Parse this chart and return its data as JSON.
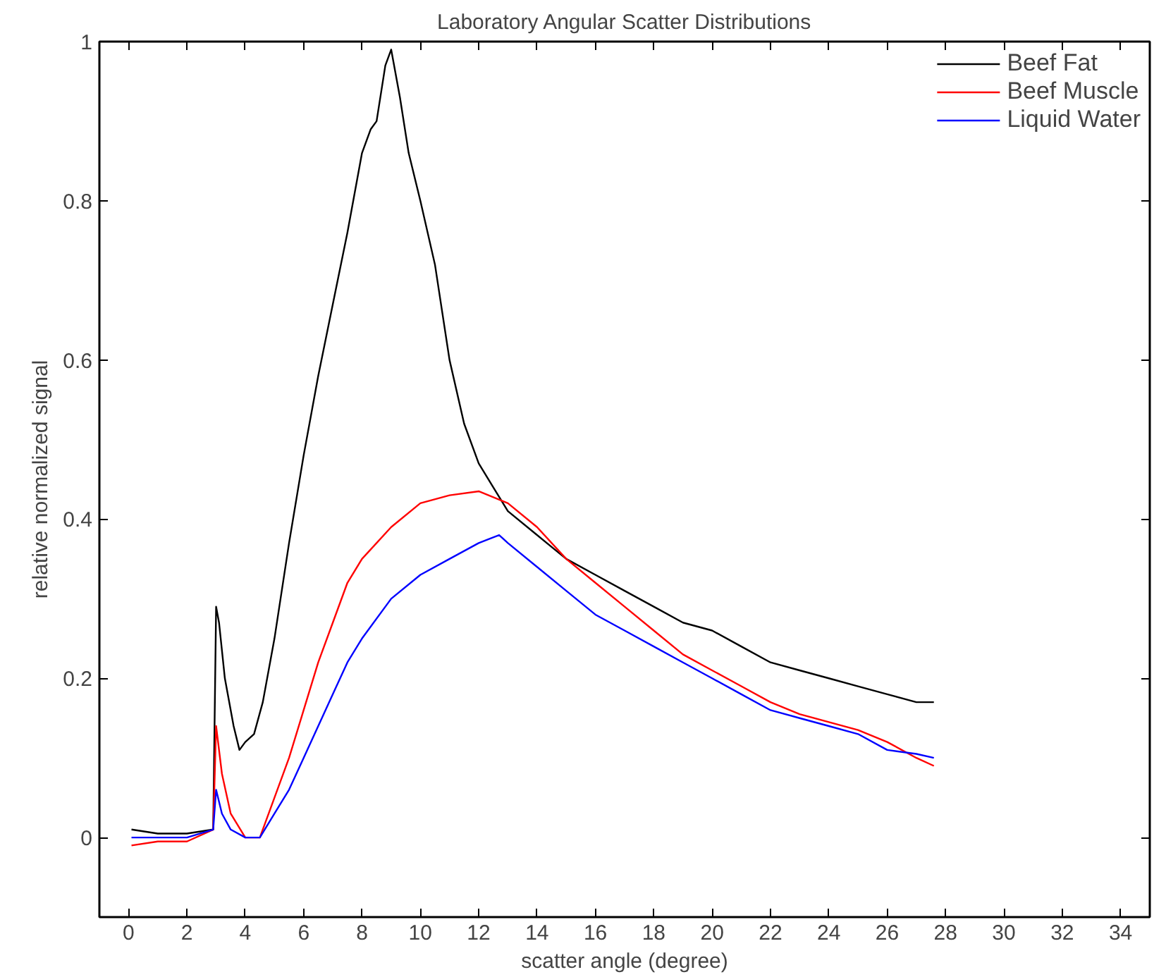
{
  "chart_data": {
    "type": "line",
    "title": "Laboratory Angular Scatter Distributions",
    "xlabel": "scatter angle (degree)",
    "ylabel": "relative normalized signal",
    "xlim": [
      -1,
      35
    ],
    "xticks": [
      0,
      2,
      4,
      6,
      8,
      10,
      12,
      14,
      16,
      18,
      20,
      22,
      24,
      26,
      28,
      30,
      32,
      34
    ],
    "ylim": [
      -0.1,
      1
    ],
    "yticks": [
      0,
      0.2,
      0.4,
      0.6,
      0.8,
      1
    ],
    "grid": false,
    "legend": "top right",
    "marker": "none",
    "line_style": "solid",
    "series": [
      {
        "name": "Beef Fat",
        "color": "#000000",
        "x": [
          0.1,
          1,
          2,
          2.9,
          3.0,
          3.1,
          3.3,
          3.6,
          3.8,
          4.0,
          4.3,
          4.6,
          5.0,
          5.5,
          6.0,
          6.5,
          7.0,
          7.5,
          8.0,
          8.3,
          8.5,
          8.8,
          9.0,
          9.3,
          9.6,
          10,
          10.5,
          11,
          11.5,
          12,
          12.5,
          13,
          14,
          15,
          16,
          17,
          18,
          19,
          20,
          21,
          22,
          23,
          24,
          25,
          26,
          27,
          27.6
        ],
        "values": [
          0.01,
          0.005,
          0.005,
          0.01,
          0.29,
          0.27,
          0.2,
          0.14,
          0.11,
          0.12,
          0.13,
          0.17,
          0.25,
          0.37,
          0.48,
          0.58,
          0.67,
          0.76,
          0.86,
          0.89,
          0.9,
          0.97,
          0.99,
          0.93,
          0.86,
          0.8,
          0.72,
          0.6,
          0.52,
          0.47,
          0.44,
          0.41,
          0.38,
          0.35,
          0.33,
          0.31,
          0.29,
          0.27,
          0.26,
          0.24,
          0.22,
          0.21,
          0.2,
          0.19,
          0.18,
          0.17,
          0.17
        ]
      },
      {
        "name": "Beef Muscle",
        "color": "#ff0000",
        "x": [
          0.1,
          1,
          2,
          2.9,
          3.0,
          3.2,
          3.5,
          4.0,
          4.5,
          5,
          5.5,
          6,
          6.5,
          7,
          7.5,
          8,
          9,
          10,
          11,
          12,
          13,
          14,
          15,
          16,
          17,
          18,
          19,
          20,
          21,
          22,
          23,
          24,
          25,
          26,
          27,
          27.6
        ],
        "values": [
          -0.01,
          -0.005,
          -0.005,
          0.01,
          0.14,
          0.08,
          0.03,
          0,
          0,
          0.05,
          0.1,
          0.16,
          0.22,
          0.27,
          0.32,
          0.35,
          0.39,
          0.42,
          0.43,
          0.435,
          0.42,
          0.39,
          0.35,
          0.32,
          0.29,
          0.26,
          0.23,
          0.21,
          0.19,
          0.17,
          0.155,
          0.145,
          0.135,
          0.12,
          0.1,
          0.09
        ]
      },
      {
        "name": "Liquid Water",
        "color": "#0000ff",
        "x": [
          0.1,
          1,
          2,
          2.9,
          3.0,
          3.2,
          3.5,
          4,
          4.5,
          5,
          5.5,
          6,
          6.5,
          7,
          7.5,
          8,
          9,
          10,
          11,
          12,
          12.7,
          13,
          14,
          15,
          16,
          17,
          18,
          19,
          20,
          21,
          22,
          23,
          24,
          25,
          26,
          27,
          27.6
        ],
        "values": [
          0,
          0,
          0,
          0.01,
          0.06,
          0.03,
          0.01,
          0,
          0,
          0.03,
          0.06,
          0.1,
          0.14,
          0.18,
          0.22,
          0.25,
          0.3,
          0.33,
          0.35,
          0.37,
          0.38,
          0.37,
          0.34,
          0.31,
          0.28,
          0.26,
          0.24,
          0.22,
          0.2,
          0.18,
          0.16,
          0.15,
          0.14,
          0.13,
          0.11,
          0.105,
          0.1
        ]
      }
    ]
  }
}
